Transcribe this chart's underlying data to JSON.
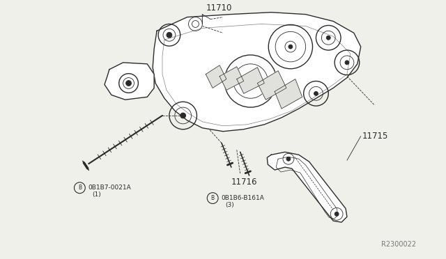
{
  "bg_color": "#f0f0eb",
  "line_color": "#2a2a2a",
  "text_color": "#2a2a2a",
  "watermark": "R2300022",
  "label_11710": "11710",
  "label_11715": "11715",
  "label_11716": "11716",
  "label_b1_code": "0B1B7-0021A",
  "label_b1_sub": "(1)",
  "label_b2_code": "0B1B6-B161A",
  "label_b2_sub": "(3)"
}
